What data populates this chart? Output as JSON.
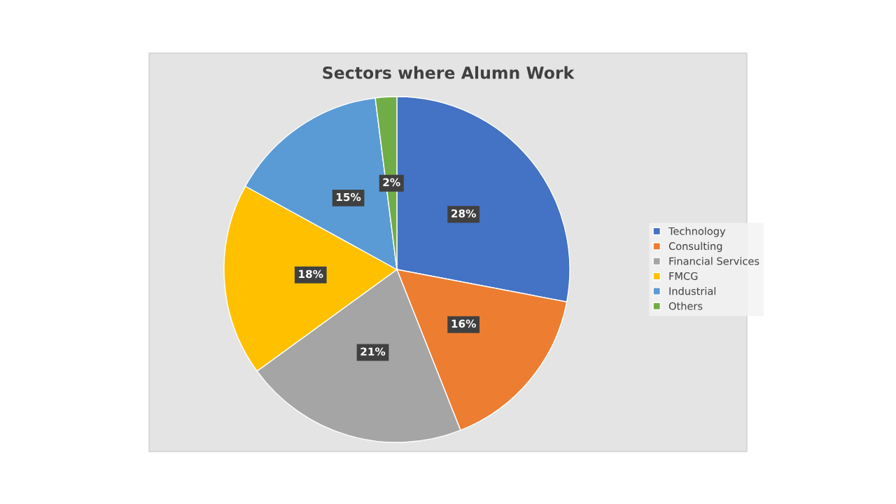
{
  "chart_data": {
    "type": "pie",
    "title": "Sectors where Alumn Work",
    "categories": [
      "Technology",
      "Consulting",
      "Financial Services",
      "FMCG",
      "Industrial",
      "Others"
    ],
    "values": [
      28,
      16,
      21,
      18,
      15,
      2
    ],
    "colors": [
      "#4472c4",
      "#ed7d31",
      "#a5a5a5",
      "#ffc000",
      "#5b9bd5",
      "#70ad47"
    ],
    "value_labels": [
      "28%",
      "16%",
      "21%",
      "18%",
      "15%",
      "2%"
    ],
    "legend": "right"
  }
}
